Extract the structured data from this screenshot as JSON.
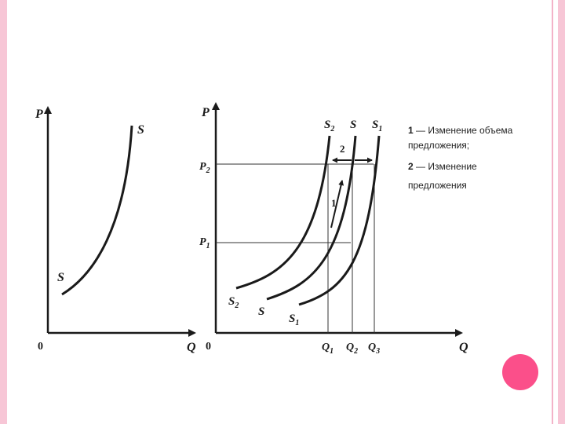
{
  "left_graph": {
    "axis_p": "P",
    "axis_q": "Q",
    "origin": "0",
    "curve_label_top": "S",
    "curve_label_bottom": "S"
  },
  "right_graph": {
    "axis_p": "P",
    "axis_q": "Q",
    "origin": "0",
    "p1": {
      "base": "P",
      "sub": "1"
    },
    "p2": {
      "base": "P",
      "sub": "2"
    },
    "q1": {
      "base": "Q",
      "sub": "1"
    },
    "q2": {
      "base": "Q",
      "sub": "2"
    },
    "q3": {
      "base": "Q",
      "sub": "3"
    },
    "top_s2": {
      "base": "S",
      "sub": "2"
    },
    "top_s": {
      "base": "S",
      "sub": ""
    },
    "top_s1": {
      "base": "S",
      "sub": "1"
    },
    "bottom_s2": {
      "base": "S",
      "sub": "2"
    },
    "bottom_s": {
      "base": "S",
      "sub": ""
    },
    "bottom_s1": {
      "base": "S",
      "sub": "1"
    },
    "arrow_label_1": "1",
    "arrow_label_2": "2"
  },
  "legend": {
    "line1_num": "1",
    "line1_text": " — Изменение объема",
    "line2_text": "предложения;",
    "line3_num": "2",
    "line3_text": " — Изменение",
    "line4_text": "предложения"
  },
  "colors": {
    "border": "#f7c6d6",
    "dot": "#fb4f8a",
    "ink": "#1a1a1a"
  }
}
